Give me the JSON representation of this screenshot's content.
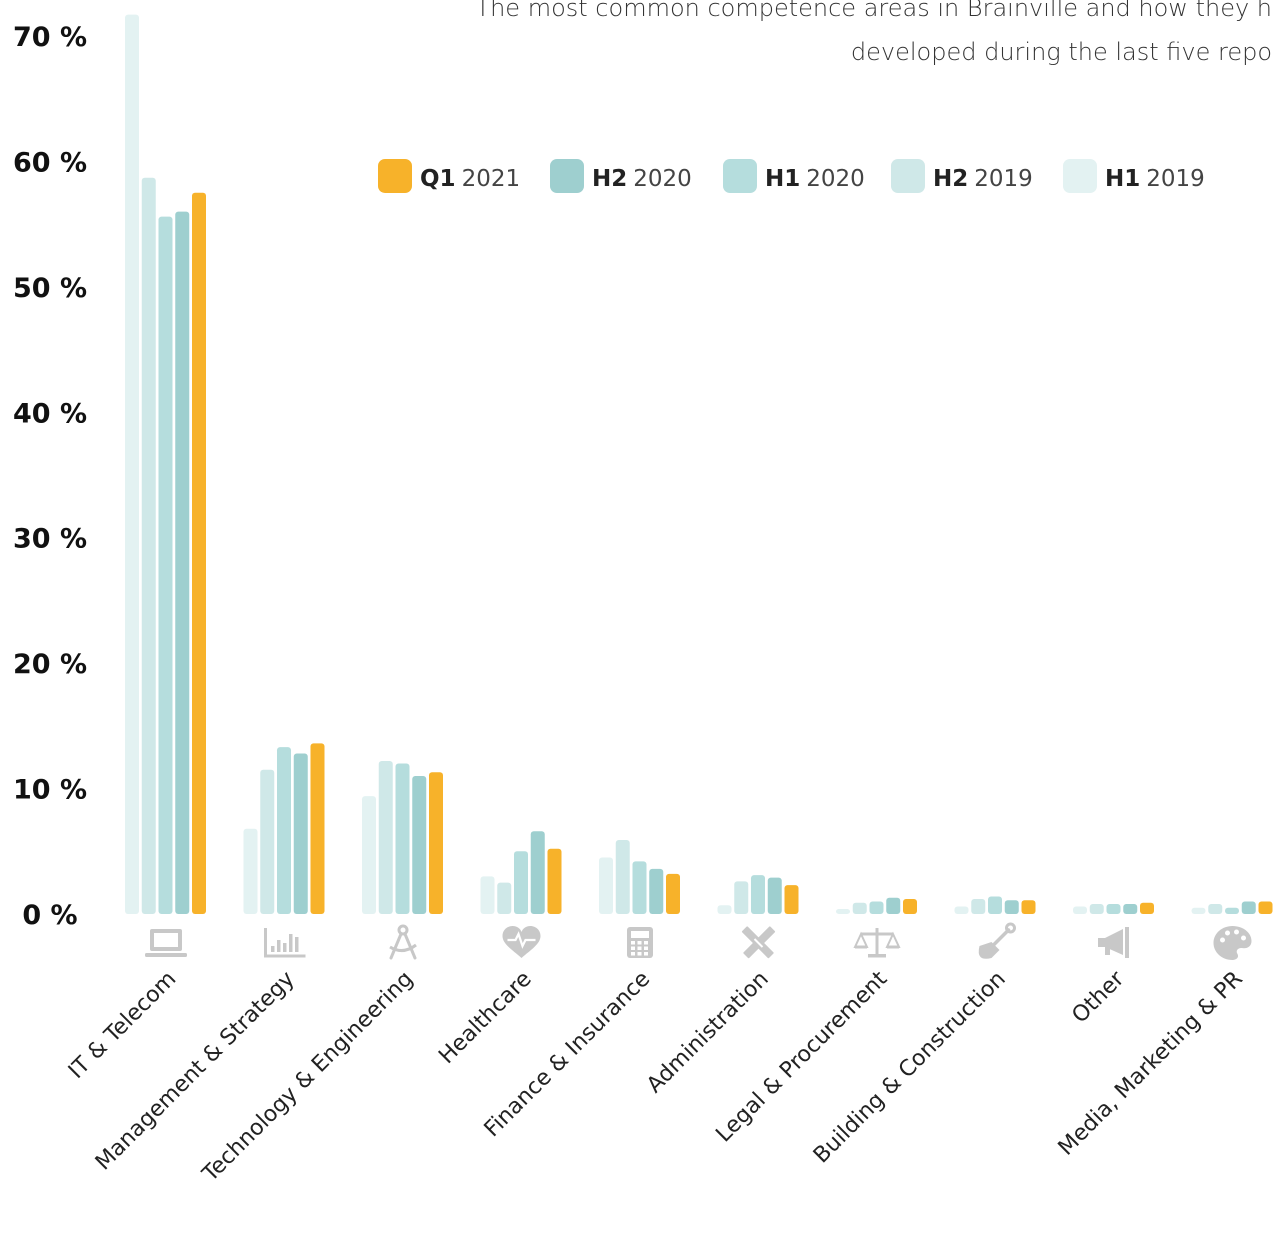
{
  "chart_data": {
    "type": "bar",
    "subtitle": [
      "The most common competence areas in Brainville and how they h",
      "developed during the last five repo"
    ],
    "categories": [
      "IT & Telecom",
      "Management & Strategy",
      "Technology & Engineering",
      "Healthcare",
      "Finance & Insurance",
      "Administration",
      "Legal & Procurement",
      "Building & Construction",
      "Other",
      "Media, Marketing & PR"
    ],
    "category_icons": [
      "laptop-icon",
      "bar-chart-icon",
      "compass-icon",
      "heartbeat-icon",
      "calculator-icon",
      "pencil-ruler-icon",
      "balance-scale-icon",
      "shovel-icon",
      "megaphone-icon",
      "palette-icon"
    ],
    "series": [
      {
        "key": "H1",
        "year": "2019",
        "color": "#e3f2f2",
        "values": [
          71.7,
          6.8,
          9.4,
          3.0,
          4.5,
          0.7,
          0.4,
          0.6,
          0.6,
          0.5
        ]
      },
      {
        "key": "H2",
        "year": "2019",
        "color": "#cfe8e8",
        "values": [
          58.7,
          11.5,
          12.2,
          2.5,
          5.9,
          2.6,
          0.9,
          1.2,
          0.8,
          0.8
        ]
      },
      {
        "key": "H1",
        "year": "2020",
        "color": "#b5dddd",
        "values": [
          55.6,
          13.3,
          12.0,
          5.0,
          4.2,
          3.1,
          1.0,
          1.4,
          0.8,
          0.5
        ]
      },
      {
        "key": "H2",
        "year": "2020",
        "color": "#9ecfcf",
        "values": [
          56.0,
          12.8,
          11.0,
          6.6,
          3.6,
          2.9,
          1.3,
          1.1,
          0.8,
          1.0
        ]
      },
      {
        "key": "Q1",
        "year": "2021",
        "color": "#f7b22a",
        "values": [
          57.5,
          13.6,
          11.3,
          5.2,
          3.2,
          2.3,
          1.2,
          1.1,
          0.9,
          1.0
        ]
      }
    ],
    "legend_order": [
      "Q1 2021",
      "H2 2020",
      "H1 2020",
      "H2 2019",
      "H1 2019"
    ],
    "ylim": [
      0,
      72
    ],
    "yticks": [
      0,
      10,
      20,
      30,
      40,
      50,
      60,
      70
    ],
    "ytick_labels": [
      "0 %",
      "10 %",
      "20 %",
      "30 %",
      "40 %",
      "50 %",
      "60 %",
      "70 %"
    ],
    "grid": false,
    "legend_position": "top-right",
    "icon_color": "#c8c8c8"
  }
}
